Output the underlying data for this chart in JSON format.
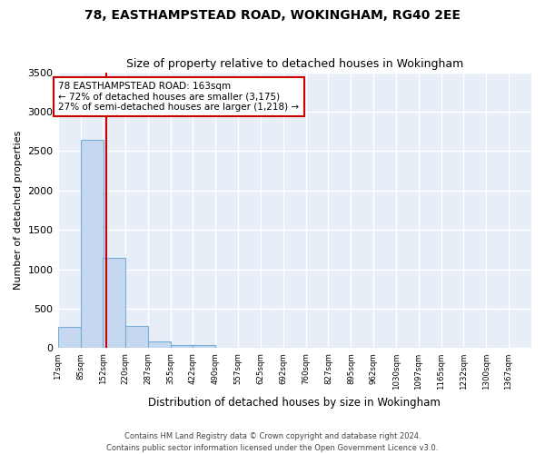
{
  "title1": "78, EASTHAMPSTEAD ROAD, WOKINGHAM, RG40 2EE",
  "title2": "Size of property relative to detached houses in Wokingham",
  "xlabel": "Distribution of detached houses by size in Wokingham",
  "ylabel": "Number of detached properties",
  "bar_color": "#c5d8f0",
  "bar_edge_color": "#7aadd4",
  "bin_edges": [
    17,
    85,
    152,
    220,
    287,
    355,
    422,
    490,
    557,
    625,
    692,
    760,
    827,
    895,
    962,
    1030,
    1097,
    1165,
    1232,
    1300,
    1367
  ],
  "bar_heights": [
    270,
    2640,
    1150,
    280,
    90,
    45,
    40,
    0,
    0,
    0,
    0,
    0,
    0,
    0,
    0,
    0,
    0,
    0,
    0,
    0
  ],
  "property_size": 163,
  "annotation_text": "78 EASTHAMPSTEAD ROAD: 163sqm\n← 72% of detached houses are smaller (3,175)\n27% of semi-detached houses are larger (1,218) →",
  "vline_color": "#cc0000",
  "annotation_box_edge_color": "#cc0000",
  "bg_color": "#e8eef8",
  "fig_bg_color": "#ffffff",
  "footer_text": "Contains HM Land Registry data © Crown copyright and database right 2024.\nContains public sector information licensed under the Open Government Licence v3.0.",
  "ylim": [
    0,
    3500
  ],
  "grid_color": "#ffffff",
  "tick_labels": [
    "17sqm",
    "85sqm",
    "152sqm",
    "220sqm",
    "287sqm",
    "355sqm",
    "422sqm",
    "490sqm",
    "557sqm",
    "625sqm",
    "692sqm",
    "760sqm",
    "827sqm",
    "895sqm",
    "962sqm",
    "1030sqm",
    "1097sqm",
    "1165sqm",
    "1232sqm",
    "1300sqm",
    "1367sqm"
  ]
}
